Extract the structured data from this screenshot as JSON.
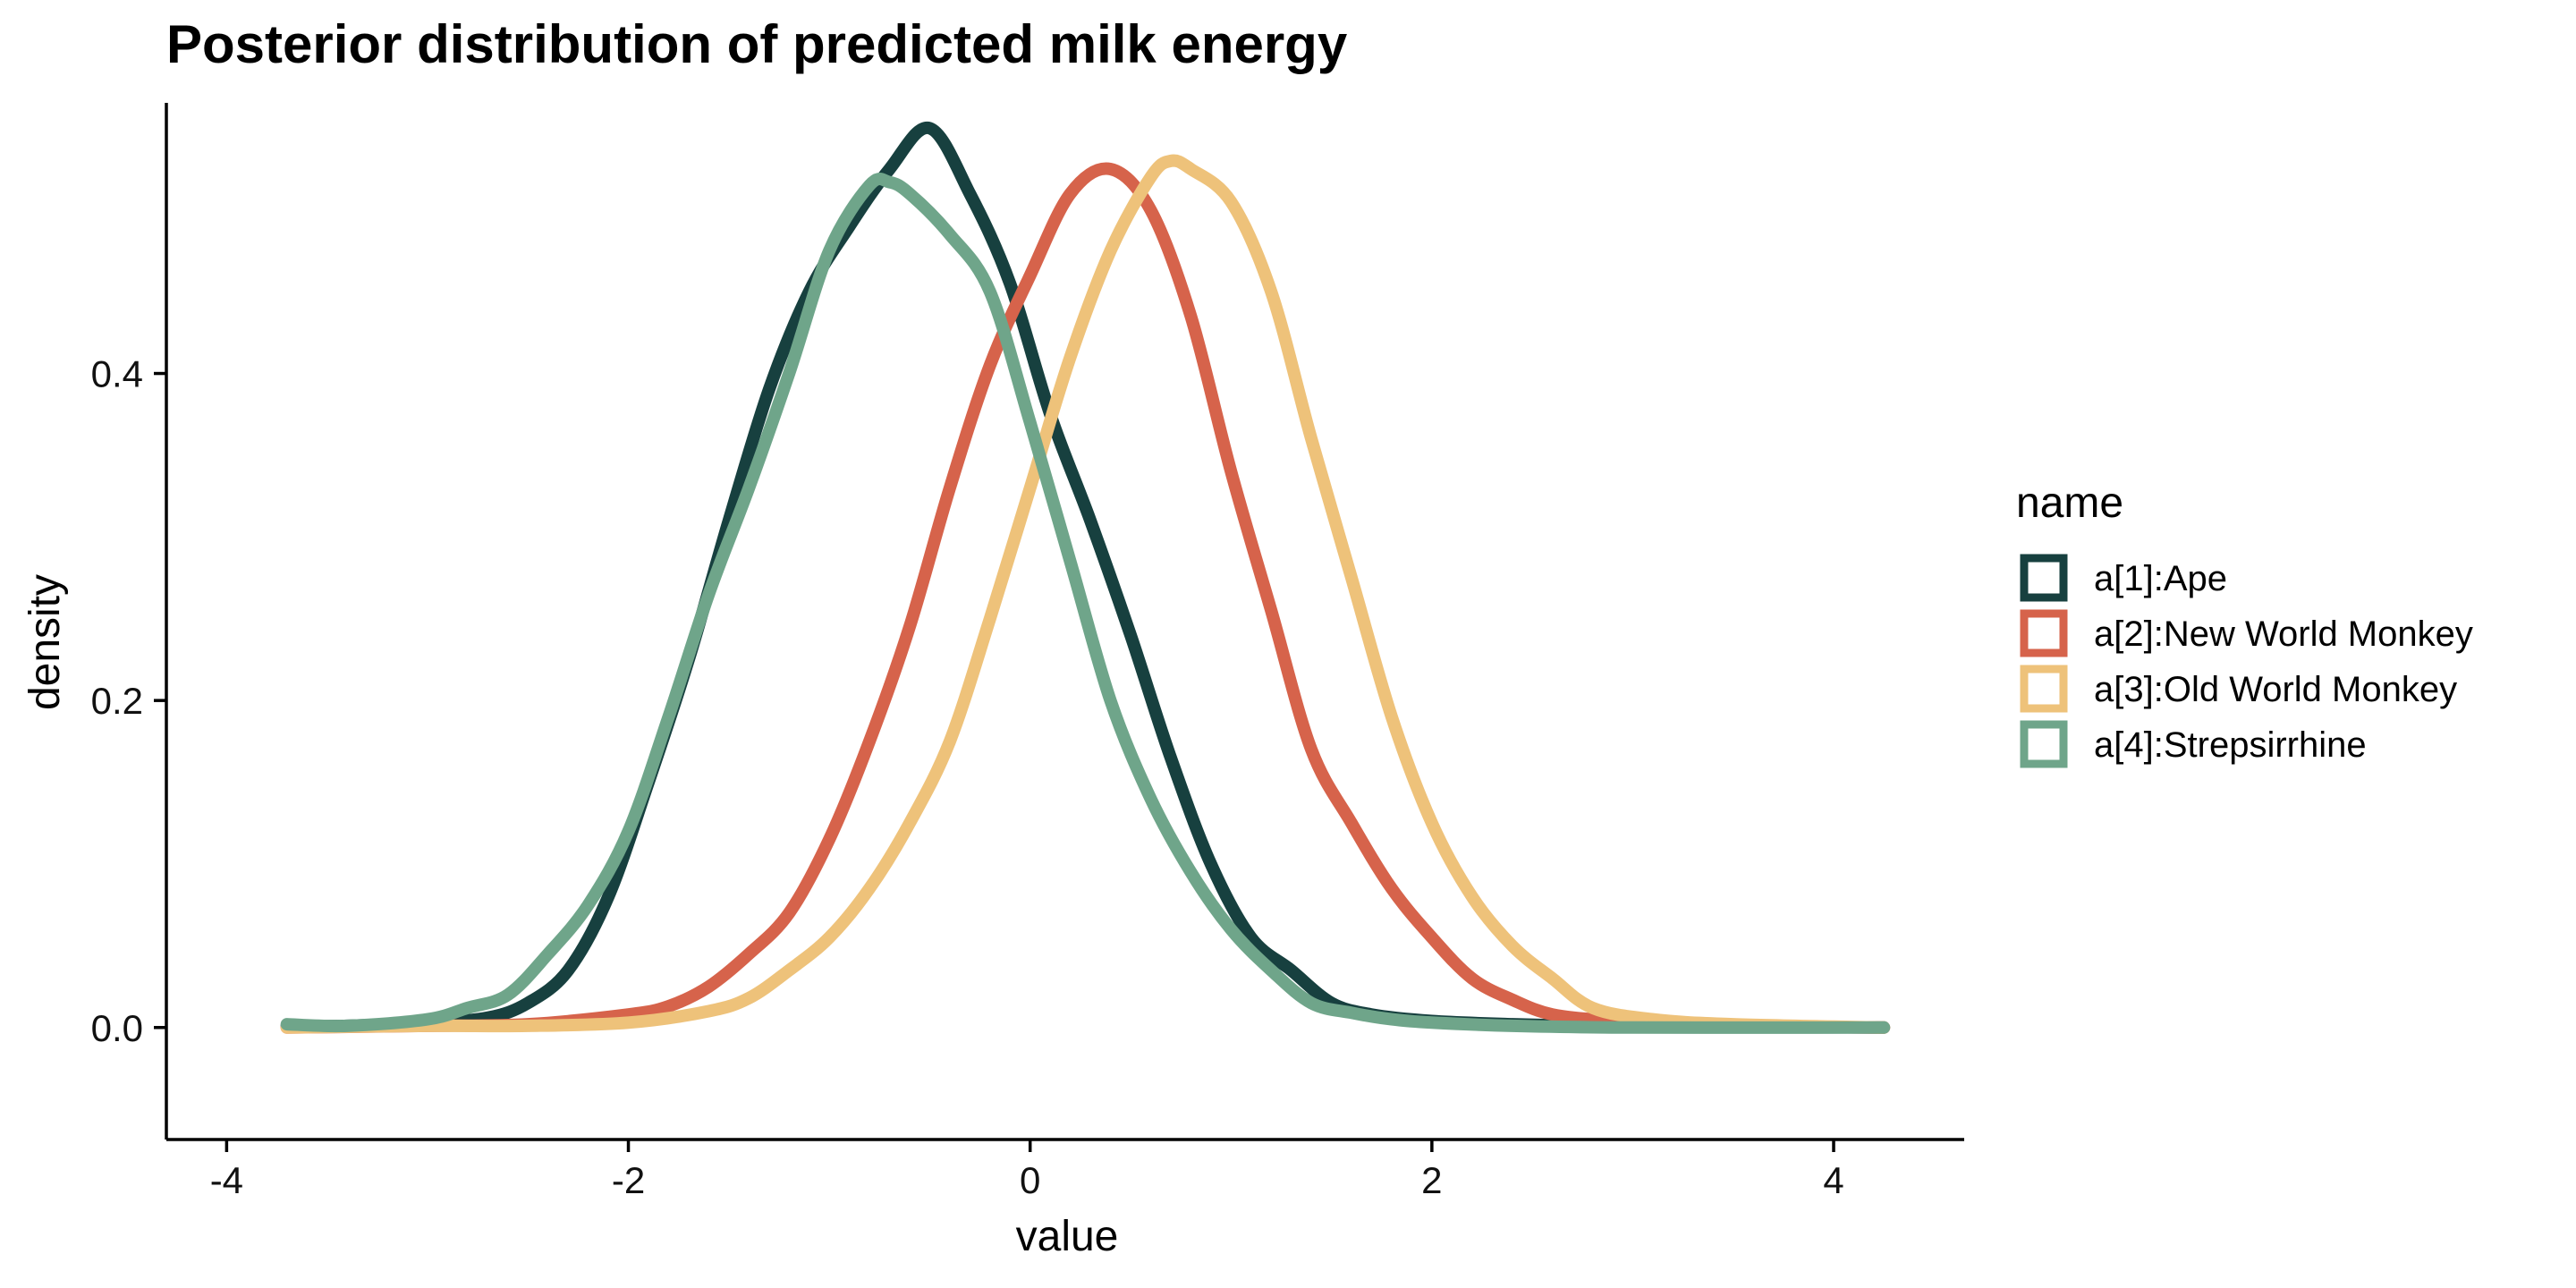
{
  "chart_data": {
    "type": "line",
    "title": "Posterior distribution of predicted milk energy",
    "xlabel": "value",
    "ylabel": "density",
    "xlim": [
      -4.3,
      4.65
    ],
    "ylim": [
      -0.0685,
      0.5655
    ],
    "x_ticks": [
      {
        "value": -4,
        "label": "-4"
      },
      {
        "value": -2,
        "label": "-2"
      },
      {
        "value": 0,
        "label": "0"
      },
      {
        "value": 2,
        "label": "2"
      },
      {
        "value": 4,
        "label": "4"
      }
    ],
    "y_ticks": [
      {
        "value": 0.0,
        "label": "0.0"
      },
      {
        "value": 0.2,
        "label": "0.2"
      },
      {
        "value": 0.4,
        "label": "0.4"
      }
    ],
    "grid": false,
    "legend": {
      "title": "name",
      "position": "right"
    },
    "series": [
      {
        "name": "a[1]:Ape",
        "color": "#17403F",
        "x": [
          -3.7,
          -3.4,
          -3.0,
          -2.7,
          -2.5,
          -2.3,
          -2.1,
          -1.9,
          -1.7,
          -1.5,
          -1.3,
          -1.1,
          -0.9,
          -0.7,
          -0.5,
          -0.3,
          -0.1,
          0.1,
          0.3,
          0.5,
          0.7,
          0.9,
          1.1,
          1.3,
          1.5,
          1.7,
          2.0,
          2.4,
          2.8,
          3.2,
          4.25
        ],
        "y": [
          0.001,
          0.001,
          0.003,
          0.006,
          0.015,
          0.035,
          0.08,
          0.15,
          0.225,
          0.31,
          0.39,
          0.45,
          0.49,
          0.525,
          0.55,
          0.51,
          0.455,
          0.375,
          0.31,
          0.24,
          0.165,
          0.1,
          0.055,
          0.035,
          0.015,
          0.008,
          0.004,
          0.002,
          0.001,
          0.001,
          0.0
        ]
      },
      {
        "name": "a[2]:New World Monkey",
        "color": "#D6634B",
        "x": [
          -3.7,
          -3.0,
          -2.5,
          -2.0,
          -1.8,
          -1.6,
          -1.4,
          -1.2,
          -1.0,
          -0.8,
          -0.6,
          -0.4,
          -0.2,
          0.0,
          0.2,
          0.4,
          0.6,
          0.8,
          1.0,
          1.2,
          1.4,
          1.6,
          1.8,
          2.0,
          2.2,
          2.4,
          2.6,
          2.9,
          3.3,
          4.25
        ],
        "y": [
          0.0,
          0.001,
          0.002,
          0.008,
          0.013,
          0.025,
          0.045,
          0.07,
          0.115,
          0.175,
          0.245,
          0.33,
          0.405,
          0.46,
          0.51,
          0.525,
          0.5,
          0.435,
          0.34,
          0.255,
          0.17,
          0.125,
          0.085,
          0.055,
          0.03,
          0.017,
          0.008,
          0.004,
          0.001,
          0.0
        ]
      },
      {
        "name": "a[3]:Old World Monkey",
        "color": "#EEC27A",
        "x": [
          -3.7,
          -3.0,
          -2.5,
          -2.0,
          -1.6,
          -1.4,
          -1.2,
          -1.0,
          -0.8,
          -0.6,
          -0.4,
          -0.2,
          0.0,
          0.2,
          0.4,
          0.6,
          0.7,
          0.8,
          1.0,
          1.2,
          1.4,
          1.6,
          1.8,
          2.0,
          2.2,
          2.4,
          2.6,
          2.8,
          3.1,
          3.5,
          4.25
        ],
        "y": [
          0.0,
          0.001,
          0.001,
          0.003,
          0.01,
          0.018,
          0.035,
          0.055,
          0.085,
          0.125,
          0.175,
          0.25,
          0.33,
          0.41,
          0.475,
          0.52,
          0.53,
          0.525,
          0.505,
          0.45,
          0.36,
          0.275,
          0.19,
          0.125,
          0.08,
          0.05,
          0.03,
          0.012,
          0.005,
          0.002,
          0.0
        ]
      },
      {
        "name": "a[4]:Strepsirrhine",
        "color": "#6FA58A",
        "x": [
          -3.7,
          -3.4,
          -3.0,
          -2.8,
          -2.6,
          -2.4,
          -2.2,
          -2.0,
          -1.8,
          -1.6,
          -1.4,
          -1.2,
          -1.0,
          -0.8,
          -0.7,
          -0.6,
          -0.4,
          -0.2,
          0.0,
          0.2,
          0.4,
          0.6,
          0.8,
          1.0,
          1.2,
          1.4,
          1.6,
          1.8,
          2.0,
          2.4,
          3.0,
          4.25
        ],
        "y": [
          0.002,
          0.001,
          0.005,
          0.012,
          0.02,
          0.045,
          0.075,
          0.12,
          0.19,
          0.265,
          0.33,
          0.4,
          0.475,
          0.515,
          0.517,
          0.51,
          0.485,
          0.45,
          0.37,
          0.285,
          0.2,
          0.14,
          0.095,
          0.06,
          0.035,
          0.015,
          0.009,
          0.005,
          0.003,
          0.001,
          0.0,
          0.0
        ]
      }
    ]
  }
}
